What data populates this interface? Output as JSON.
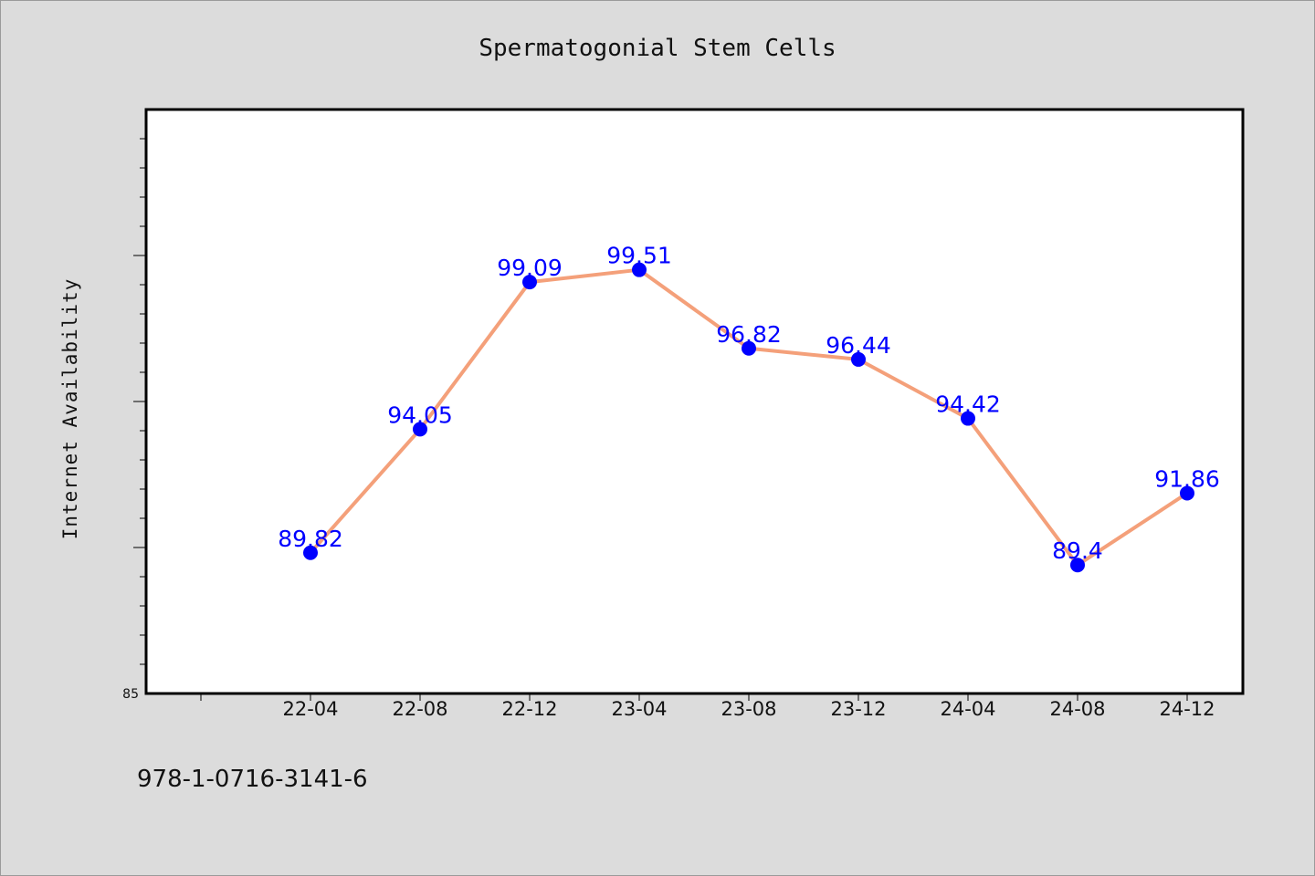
{
  "chart_data": {
    "type": "line",
    "title": "Spermatogonial Stem Cells",
    "xlabel": "",
    "ylabel": "Internet Availability",
    "categories": [
      "22-04",
      "22-08",
      "22-12",
      "23-04",
      "23-08",
      "23-12",
      "24-04",
      "24-08",
      "24-12"
    ],
    "values": [
      89.82,
      94.05,
      99.09,
      99.51,
      96.82,
      96.44,
      94.42,
      89.4,
      91.86
    ],
    "data_labels": [
      "89.82",
      "94.05",
      "99.09",
      "99.51",
      "96.82",
      "96.44",
      "94.42",
      "89.4",
      "91.86"
    ],
    "ylim": [
      85,
      105
    ],
    "y_tick_labels": [
      {
        "value": 85,
        "label": "85"
      }
    ],
    "grid": false,
    "legend": "none",
    "line_color": "#f4a07a",
    "marker_color": "#0000ff",
    "label_color": "#0000ff"
  },
  "footer": {
    "isbn": "978-1-0716-3141-6"
  }
}
